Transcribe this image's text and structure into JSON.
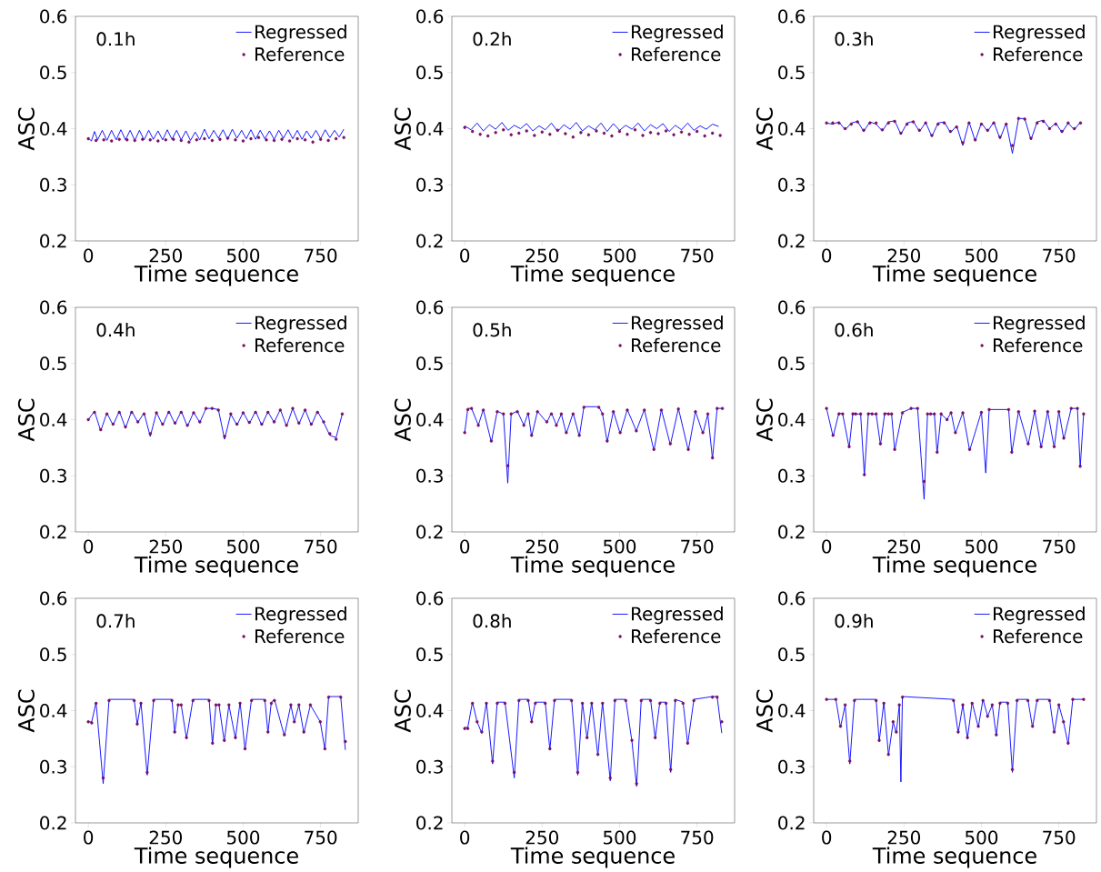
{
  "chart_data": [
    {
      "type": "line",
      "annotations": [
        "0.1h"
      ],
      "xlabel": "Time sequence",
      "ylabel": "ASC",
      "xlim": [
        -41.5,
        871.5
      ],
      "ylim": [
        0.2,
        0.6
      ],
      "xticks": [
        0,
        250,
        500,
        750
      ],
      "yticks": [
        0.2,
        0.3,
        0.4,
        0.5,
        0.6
      ],
      "legend": "top right",
      "x": [
        0,
        10,
        20,
        30,
        45,
        60,
        75,
        90,
        105,
        120,
        135,
        150,
        165,
        180,
        195,
        210,
        225,
        240,
        255,
        270,
        285,
        300,
        315,
        330,
        345,
        360,
        375,
        390,
        405,
        420,
        435,
        450,
        465,
        480,
        495,
        510,
        525,
        540,
        555,
        570,
        585,
        600,
        615,
        630,
        645,
        660,
        675,
        690,
        705,
        720,
        735,
        750,
        765,
        780,
        795,
        810,
        825
      ],
      "series": [
        {
          "name": "Regressed",
          "color": "#0000ff",
          "marker": "none",
          "values": [
            0.383,
            0.378,
            0.395,
            0.38,
            0.397,
            0.379,
            0.397,
            0.38,
            0.398,
            0.38,
            0.397,
            0.379,
            0.397,
            0.38,
            0.397,
            0.381,
            0.396,
            0.38,
            0.398,
            0.381,
            0.397,
            0.38,
            0.396,
            0.379,
            0.394,
            0.38,
            0.399,
            0.382,
            0.397,
            0.383,
            0.398,
            0.381,
            0.399,
            0.383,
            0.397,
            0.382,
            0.398,
            0.381,
            0.397,
            0.382,
            0.396,
            0.381,
            0.397,
            0.383,
            0.398,
            0.382,
            0.397,
            0.381,
            0.396,
            0.383,
            0.397,
            0.382,
            0.398,
            0.384,
            0.397,
            0.385,
            0.399
          ]
        },
        {
          "name": "Reference",
          "type": "scatter",
          "color": "#7a1060",
          "marker": "circle",
          "x": [
            0,
            25,
            50,
            75,
            100,
            125,
            150,
            175,
            200,
            225,
            250,
            275,
            300,
            325,
            350,
            375,
            400,
            425,
            450,
            475,
            500,
            525,
            550,
            575,
            600,
            625,
            650,
            675,
            700,
            725,
            750,
            775,
            800,
            825
          ],
          "values": [
            0.382,
            0.379,
            0.38,
            0.378,
            0.381,
            0.38,
            0.379,
            0.381,
            0.38,
            0.378,
            0.38,
            0.381,
            0.379,
            0.376,
            0.38,
            0.382,
            0.379,
            0.381,
            0.383,
            0.38,
            0.378,
            0.382,
            0.384,
            0.38,
            0.379,
            0.381,
            0.378,
            0.382,
            0.38,
            0.376,
            0.381,
            0.379,
            0.382,
            0.384
          ]
        }
      ]
    },
    {
      "type": "line",
      "annotations": [
        "0.2h"
      ],
      "xlabel": "Time sequence",
      "ylabel": "ASC",
      "xlim": [
        -41.5,
        871.5
      ],
      "ylim": [
        0.2,
        0.6
      ],
      "xticks": [
        0,
        250,
        500,
        750
      ],
      "yticks": [
        0.2,
        0.3,
        0.4,
        0.5,
        0.6
      ],
      "legend": "top right",
      "x": [
        0,
        20,
        40,
        60,
        80,
        100,
        120,
        140,
        160,
        180,
        200,
        220,
        240,
        260,
        280,
        300,
        320,
        340,
        360,
        380,
        400,
        420,
        440,
        460,
        480,
        500,
        520,
        540,
        560,
        580,
        600,
        620,
        640,
        660,
        680,
        700,
        720,
        740,
        760,
        780,
        800,
        820
      ],
      "series": [
        {
          "name": "Regressed",
          "color": "#0000ff",
          "marker": "none",
          "values": [
            0.405,
            0.398,
            0.41,
            0.396,
            0.407,
            0.399,
            0.411,
            0.397,
            0.406,
            0.4,
            0.409,
            0.396,
            0.405,
            0.398,
            0.41,
            0.395,
            0.407,
            0.399,
            0.411,
            0.396,
            0.405,
            0.398,
            0.41,
            0.395,
            0.409,
            0.397,
            0.406,
            0.399,
            0.41,
            0.396,
            0.407,
            0.4,
            0.409,
            0.395,
            0.406,
            0.398,
            0.41,
            0.397,
            0.405,
            0.399,
            0.408,
            0.404
          ]
        },
        {
          "name": "Reference",
          "type": "scatter",
          "color": "#7a1060",
          "marker": "circle",
          "x": [
            0,
            25,
            50,
            75,
            100,
            125,
            150,
            175,
            200,
            225,
            250,
            275,
            300,
            325,
            350,
            375,
            400,
            425,
            450,
            475,
            500,
            525,
            550,
            575,
            600,
            625,
            650,
            675,
            700,
            725,
            750,
            775,
            800,
            825
          ],
          "values": [
            0.402,
            0.395,
            0.39,
            0.387,
            0.393,
            0.398,
            0.389,
            0.392,
            0.396,
            0.388,
            0.394,
            0.39,
            0.397,
            0.391,
            0.385,
            0.393,
            0.389,
            0.396,
            0.392,
            0.387,
            0.395,
            0.39,
            0.398,
            0.388,
            0.393,
            0.391,
            0.396,
            0.389,
            0.394,
            0.39,
            0.395,
            0.387,
            0.392,
            0.388
          ]
        }
      ]
    },
    {
      "type": "line",
      "annotations": [
        "0.3h"
      ],
      "xlabel": "Time sequence",
      "ylabel": "ASC",
      "xlim": [
        -41.5,
        871.5
      ],
      "ylim": [
        0.2,
        0.6
      ],
      "xticks": [
        0,
        250,
        500,
        750
      ],
      "yticks": [
        0.2,
        0.3,
        0.4,
        0.5,
        0.6
      ],
      "legend": "top right",
      "x": [
        0,
        20,
        40,
        60,
        80,
        100,
        120,
        140,
        160,
        180,
        200,
        220,
        240,
        260,
        280,
        300,
        320,
        340,
        360,
        380,
        400,
        420,
        440,
        460,
        480,
        500,
        520,
        540,
        560,
        580,
        600,
        620,
        640,
        660,
        680,
        700,
        720,
        740,
        760,
        780,
        800,
        820
      ],
      "series": [
        {
          "name": "Regressed",
          "color": "#0000ff",
          "marker": "none",
          "values": [
            0.41,
            0.408,
            0.412,
            0.398,
            0.41,
            0.413,
            0.395,
            0.412,
            0.408,
            0.396,
            0.412,
            0.414,
            0.39,
            0.41,
            0.413,
            0.395,
            0.411,
            0.386,
            0.41,
            0.412,
            0.393,
            0.405,
            0.37,
            0.412,
            0.378,
            0.41,
            0.395,
            0.412,
            0.382,
            0.41,
            0.356,
            0.418,
            0.418,
            0.38,
            0.412,
            0.415,
            0.4,
            0.41,
            0.393,
            0.41,
            0.398,
            0.412
          ]
        },
        {
          "name": "Reference",
          "type": "scatter",
          "color": "#7a1060",
          "marker": "circle",
          "values": [
            0.41,
            0.41,
            0.41,
            0.4,
            0.408,
            0.412,
            0.397,
            0.41,
            0.41,
            0.398,
            0.41,
            0.413,
            0.392,
            0.408,
            0.412,
            0.397,
            0.41,
            0.388,
            0.408,
            0.41,
            0.395,
            0.403,
            0.375,
            0.41,
            0.38,
            0.408,
            0.397,
            0.41,
            0.385,
            0.408,
            0.37,
            0.418,
            0.417,
            0.383,
            0.41,
            0.413,
            0.4,
            0.408,
            0.395,
            0.41,
            0.4,
            0.41
          ]
        }
      ]
    },
    {
      "type": "line",
      "annotations": [
        "0.4h"
      ],
      "xlabel": "Time sequence",
      "ylabel": "ASC",
      "xlim": [
        -41.5,
        871.5
      ],
      "ylim": [
        0.2,
        0.6
      ],
      "xticks": [
        0,
        250,
        500,
        750
      ],
      "yticks": [
        0.2,
        0.3,
        0.4,
        0.5,
        0.6
      ],
      "legend": "top right",
      "x": [
        0,
        20,
        40,
        60,
        80,
        100,
        120,
        140,
        160,
        180,
        200,
        220,
        240,
        260,
        280,
        300,
        320,
        340,
        360,
        380,
        400,
        420,
        440,
        460,
        480,
        500,
        520,
        540,
        560,
        580,
        600,
        620,
        640,
        660,
        680,
        700,
        720,
        740,
        760,
        780,
        800,
        820
      ],
      "series": [
        {
          "name": "Regressed",
          "color": "#0000ff",
          "marker": "none",
          "values": [
            0.4,
            0.415,
            0.38,
            0.412,
            0.39,
            0.415,
            0.385,
            0.415,
            0.395,
            0.412,
            0.37,
            0.413,
            0.39,
            0.415,
            0.392,
            0.415,
            0.388,
            0.413,
            0.395,
            0.42,
            0.42,
            0.418,
            0.365,
            0.41,
            0.39,
            0.413,
            0.393,
            0.415,
            0.39,
            0.414,
            0.395,
            0.418,
            0.388,
            0.42,
            0.392,
            0.418,
            0.39,
            0.415,
            0.395,
            0.372,
            0.368,
            0.41
          ]
        },
        {
          "name": "Reference",
          "type": "scatter",
          "color": "#7a1060",
          "marker": "circle",
          "values": [
            0.4,
            0.413,
            0.382,
            0.41,
            0.392,
            0.413,
            0.387,
            0.413,
            0.396,
            0.41,
            0.375,
            0.412,
            0.392,
            0.413,
            0.394,
            0.413,
            0.39,
            0.412,
            0.396,
            0.42,
            0.42,
            0.417,
            0.37,
            0.41,
            0.392,
            0.412,
            0.395,
            0.413,
            0.392,
            0.413,
            0.396,
            0.417,
            0.39,
            0.42,
            0.394,
            0.417,
            0.392,
            0.413,
            0.396,
            0.375,
            0.365,
            0.41
          ]
        }
      ]
    },
    {
      "type": "line",
      "annotations": [
        "0.5h"
      ],
      "xlabel": "Time sequence",
      "ylabel": "ASC",
      "xlim": [
        -41.5,
        871.5
      ],
      "ylim": [
        0.2,
        0.6
      ],
      "xticks": [
        0,
        250,
        500,
        750
      ],
      "yticks": [
        0.2,
        0.3,
        0.4,
        0.5,
        0.6
      ],
      "legend": "top right",
      "x": [
        0,
        10,
        22,
        44,
        60,
        86,
        105,
        125,
        139,
        150,
        170,
        191,
        205,
        216,
        235,
        265,
        280,
        296,
        312,
        328,
        350,
        370,
        385,
        433,
        445,
        460,
        480,
        502,
        525,
        554,
        580,
        611,
        635,
        664,
        690,
        722,
        745,
        769,
        785,
        800,
        815,
        832
      ],
      "series": [
        {
          "name": "Regressed",
          "color": "#0000ff",
          "marker": "none",
          "values": [
            0.377,
            0.42,
            0.42,
            0.39,
            0.418,
            0.36,
            0.415,
            0.41,
            0.287,
            0.41,
            0.415,
            0.39,
            0.412,
            0.37,
            0.415,
            0.395,
            0.412,
            0.39,
            0.41,
            0.375,
            0.412,
            0.37,
            0.423,
            0.423,
            0.41,
            0.36,
            0.415,
            0.375,
            0.418,
            0.38,
            0.418,
            0.345,
            0.418,
            0.355,
            0.42,
            0.345,
            0.415,
            0.375,
            0.41,
            0.33,
            0.42,
            0.42
          ]
        },
        {
          "name": "Reference",
          "type": "scatter",
          "color": "#7a1060",
          "marker": "circle",
          "values": [
            0.377,
            0.418,
            0.42,
            0.39,
            0.417,
            0.362,
            0.414,
            0.41,
            0.318,
            0.41,
            0.414,
            0.39,
            0.41,
            0.372,
            0.414,
            0.396,
            0.41,
            0.39,
            0.41,
            0.377,
            0.41,
            0.372,
            0.422,
            0.422,
            0.41,
            0.362,
            0.414,
            0.377,
            0.417,
            0.38,
            0.417,
            0.347,
            0.417,
            0.357,
            0.419,
            0.347,
            0.414,
            0.377,
            0.41,
            0.332,
            0.42,
            0.42
          ]
        }
      ]
    },
    {
      "type": "line",
      "annotations": [
        "0.6h"
      ],
      "xlabel": "Time sequence",
      "ylabel": "ASC",
      "xlim": [
        -41.5,
        871.5
      ],
      "ylim": [
        0.2,
        0.6
      ],
      "xticks": [
        0,
        250,
        500,
        750
      ],
      "yticks": [
        0.2,
        0.3,
        0.4,
        0.5,
        0.6
      ],
      "legend": "top right",
      "x": [
        0,
        21,
        40,
        52,
        73,
        85,
        94,
        110,
        122,
        135,
        147,
        160,
        174,
        188,
        200,
        210,
        220,
        245,
        273,
        294,
        315,
        326,
        336,
        348,
        357,
        370,
        389,
        402,
        416,
        440,
        462,
        500,
        514,
        525,
        588,
        598,
        620,
        651,
        672,
        693,
        714,
        735,
        750,
        766,
        790,
        810,
        819,
        830
      ],
      "series": [
        {
          "name": "Regressed",
          "color": "#0000ff",
          "marker": "none",
          "values": [
            0.42,
            0.37,
            0.412,
            0.41,
            0.35,
            0.412,
            0.41,
            0.41,
            0.3,
            0.412,
            0.41,
            0.41,
            0.355,
            0.412,
            0.41,
            0.41,
            0.345,
            0.413,
            0.42,
            0.42,
            0.258,
            0.41,
            0.41,
            0.41,
            0.34,
            0.41,
            0.4,
            0.413,
            0.375,
            0.413,
            0.345,
            0.414,
            0.305,
            0.418,
            0.418,
            0.34,
            0.415,
            0.355,
            0.416,
            0.35,
            0.415,
            0.35,
            0.415,
            0.365,
            0.42,
            0.42,
            0.315,
            0.41
          ]
        },
        {
          "name": "Reference",
          "type": "scatter",
          "color": "#7a1060",
          "marker": "circle",
          "values": [
            0.42,
            0.372,
            0.41,
            0.41,
            0.352,
            0.41,
            0.41,
            0.41,
            0.302,
            0.41,
            0.41,
            0.41,
            0.357,
            0.41,
            0.41,
            0.41,
            0.347,
            0.412,
            0.42,
            0.42,
            0.29,
            0.41,
            0.41,
            0.41,
            0.342,
            0.41,
            0.4,
            0.412,
            0.377,
            0.412,
            0.347,
            0.413,
            null,
            0.418,
            0.418,
            0.342,
            0.414,
            0.357,
            0.415,
            0.352,
            0.414,
            0.352,
            0.414,
            0.367,
            0.42,
            0.42,
            0.317,
            0.41
          ]
        }
      ]
    },
    {
      "type": "line",
      "annotations": [
        "0.7h"
      ],
      "xlabel": "Time sequence",
      "ylabel": "ASC",
      "xlim": [
        -41.5,
        871.5
      ],
      "ylim": [
        0.2,
        0.6
      ],
      "xticks": [
        0,
        250,
        500,
        750
      ],
      "yticks": [
        0.2,
        0.3,
        0.4,
        0.5,
        0.6
      ],
      "legend": "top right",
      "x": [
        0,
        11,
        25,
        48,
        67,
        148,
        158,
        170,
        190,
        211,
        270,
        279,
        290,
        300,
        317,
        338,
        390,
        401,
        412,
        422,
        439,
        454,
        475,
        490,
        506,
        527,
        570,
        580,
        591,
        601,
        633,
        654,
        665,
        680,
        696,
        717,
        749,
        764,
        776,
        815,
        830
      ],
      "series": [
        {
          "name": "Regressed",
          "color": "#0000ff",
          "marker": "none",
          "values": [
            0.38,
            0.38,
            0.415,
            0.27,
            0.42,
            0.42,
            0.375,
            0.415,
            0.285,
            0.42,
            0.42,
            0.36,
            0.41,
            0.41,
            0.35,
            0.42,
            0.42,
            0.34,
            0.41,
            0.41,
            0.345,
            0.41,
            0.35,
            0.415,
            0.33,
            0.42,
            0.42,
            0.36,
            0.415,
            0.42,
            0.355,
            0.41,
            0.38,
            0.41,
            0.36,
            0.41,
            0.38,
            0.33,
            0.425,
            0.425,
            0.33
          ]
        },
        {
          "name": "Reference",
          "type": "scatter",
          "color": "#7a1060",
          "marker": "circle",
          "values": [
            0.38,
            0.378,
            0.413,
            0.28,
            0.418,
            0.418,
            0.376,
            0.413,
            0.29,
            0.418,
            0.418,
            0.362,
            0.41,
            0.41,
            0.352,
            0.418,
            0.418,
            0.342,
            0.41,
            0.41,
            0.347,
            0.41,
            0.352,
            0.413,
            0.332,
            0.418,
            0.418,
            0.362,
            0.413,
            0.418,
            0.357,
            0.41,
            0.38,
            0.41,
            0.362,
            0.41,
            0.38,
            0.332,
            0.424,
            0.424,
            0.345
          ]
        }
      ]
    },
    {
      "type": "line",
      "annotations": [
        "0.8h"
      ],
      "xlabel": "Time sequence",
      "ylabel": "ASC",
      "xlim": [
        -41.5,
        871.5
      ],
      "ylim": [
        0.2,
        0.6
      ],
      "xticks": [
        0,
        250,
        500,
        750
      ],
      "yticks": [
        0.2,
        0.3,
        0.4,
        0.5,
        0.6
      ],
      "legend": "top right",
      "x": [
        0,
        10,
        25,
        40,
        55,
        70,
        90,
        105,
        130,
        160,
        175,
        205,
        216,
        228,
        260,
        275,
        290,
        345,
        365,
        380,
        395,
        410,
        430,
        445,
        470,
        485,
        520,
        540,
        555,
        570,
        600,
        615,
        630,
        650,
        665,
        680,
        705,
        720,
        740,
        800,
        815,
        830
      ],
      "series": [
        {
          "name": "Regressed",
          "color": "#0000ff",
          "marker": "none",
          "values": [
            0.37,
            0.37,
            0.415,
            0.38,
            0.36,
            0.415,
            0.305,
            0.415,
            0.415,
            0.28,
            0.42,
            0.42,
            0.38,
            0.415,
            0.415,
            0.33,
            0.42,
            0.42,
            0.285,
            0.415,
            0.35,
            0.415,
            0.32,
            0.415,
            0.275,
            0.42,
            0.42,
            0.345,
            0.265,
            0.42,
            0.42,
            0.35,
            0.415,
            0.415,
            0.29,
            0.42,
            0.415,
            0.34,
            0.42,
            0.425,
            0.425,
            0.36
          ]
        },
        {
          "name": "Reference",
          "type": "scatter",
          "color": "#7a1060",
          "marker": "circle",
          "values": [
            0.368,
            0.368,
            0.413,
            0.38,
            0.362,
            0.413,
            0.31,
            0.413,
            0.413,
            0.29,
            0.418,
            0.418,
            0.38,
            0.413,
            0.413,
            0.332,
            0.418,
            0.418,
            0.29,
            0.413,
            0.352,
            0.413,
            0.322,
            0.413,
            0.28,
            0.418,
            0.418,
            0.347,
            0.27,
            0.418,
            0.418,
            0.352,
            0.413,
            0.413,
            0.295,
            0.418,
            0.413,
            0.342,
            0.418,
            0.424,
            0.424,
            0.38
          ]
        }
      ]
    },
    {
      "type": "line",
      "annotations": [
        "0.9h"
      ],
      "xlabel": "Time sequence",
      "ylabel": "ASC",
      "xlim": [
        -41.5,
        871.5
      ],
      "ylim": [
        0.2,
        0.6
      ],
      "xticks": [
        0,
        250,
        500,
        750
      ],
      "yticks": [
        0.2,
        0.3,
        0.4,
        0.5,
        0.6
      ],
      "legend": "top right",
      "x": [
        0,
        30,
        45,
        60,
        75,
        90,
        160,
        170,
        185,
        200,
        215,
        225,
        235,
        240,
        245,
        410,
        425,
        440,
        455,
        470,
        490,
        505,
        520,
        535,
        548,
        560,
        585,
        600,
        615,
        650,
        665,
        680,
        720,
        735,
        750,
        765,
        780,
        795,
        830
      ],
      "series": [
        {
          "name": "Regressed",
          "color": "#0000ff",
          "marker": "none",
          "values": [
            0.42,
            0.42,
            0.37,
            0.41,
            0.305,
            0.42,
            0.42,
            0.345,
            0.415,
            0.32,
            0.38,
            0.36,
            0.41,
            0.273,
            0.425,
            0.42,
            0.36,
            0.41,
            0.35,
            0.415,
            0.37,
            0.42,
            0.39,
            0.41,
            0.355,
            0.415,
            0.415,
            0.29,
            0.42,
            0.42,
            0.37,
            0.42,
            0.42,
            0.36,
            0.41,
            0.38,
            0.34,
            0.42,
            0.42
          ]
        },
        {
          "name": "Reference",
          "type": "scatter",
          "color": "#7a1060",
          "marker": "circle",
          "values": [
            0.42,
            0.42,
            0.372,
            0.41,
            0.31,
            0.418,
            0.418,
            0.347,
            0.413,
            0.322,
            0.38,
            0.362,
            0.41,
            null,
            0.424,
            0.418,
            0.362,
            0.41,
            0.352,
            0.413,
            0.372,
            0.418,
            0.39,
            0.41,
            0.357,
            0.413,
            0.413,
            0.295,
            0.418,
            0.418,
            0.372,
            0.418,
            0.418,
            0.362,
            0.41,
            0.38,
            0.342,
            0.42,
            0.42
          ]
        }
      ]
    }
  ]
}
